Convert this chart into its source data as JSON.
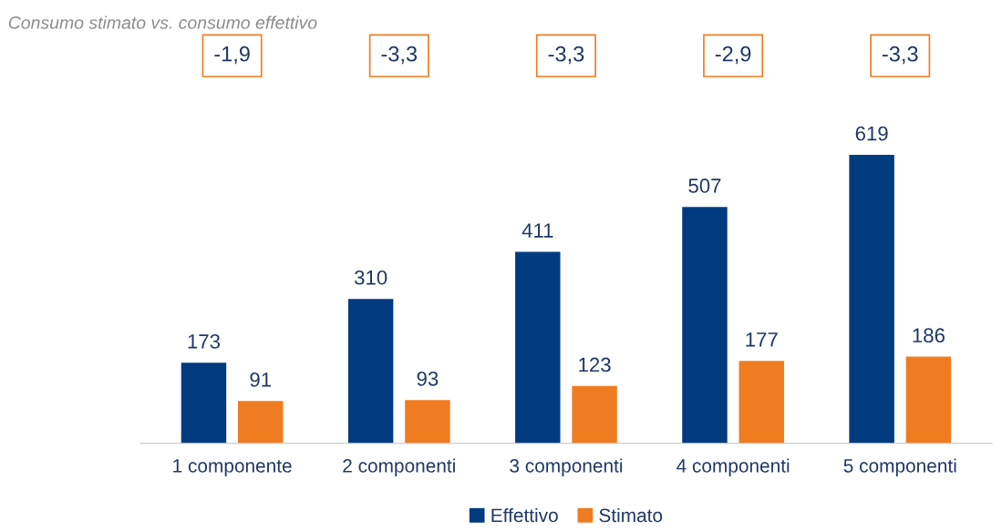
{
  "chart_data": {
    "type": "bar",
    "categories": [
      "1 componente",
      "2 componenti",
      "3 componenti",
      "4 componenti",
      "5 componenti"
    ],
    "series": [
      {
        "name": "Effettivo",
        "color": "#003b7f",
        "values": [
          173,
          310,
          411,
          507,
          619
        ]
      },
      {
        "name": "Stimato",
        "color": "#f07c22",
        "values": [
          91,
          93,
          123,
          177,
          186
        ]
      }
    ],
    "data_labels": true,
    "legend": "bottom",
    "grid": false,
    "annotations": [
      "Consumo stimato vs. consumo effettivo",
      "-1,9",
      "-3,3",
      "-3,3",
      "-2,9",
      "-3,3"
    ]
  }
}
